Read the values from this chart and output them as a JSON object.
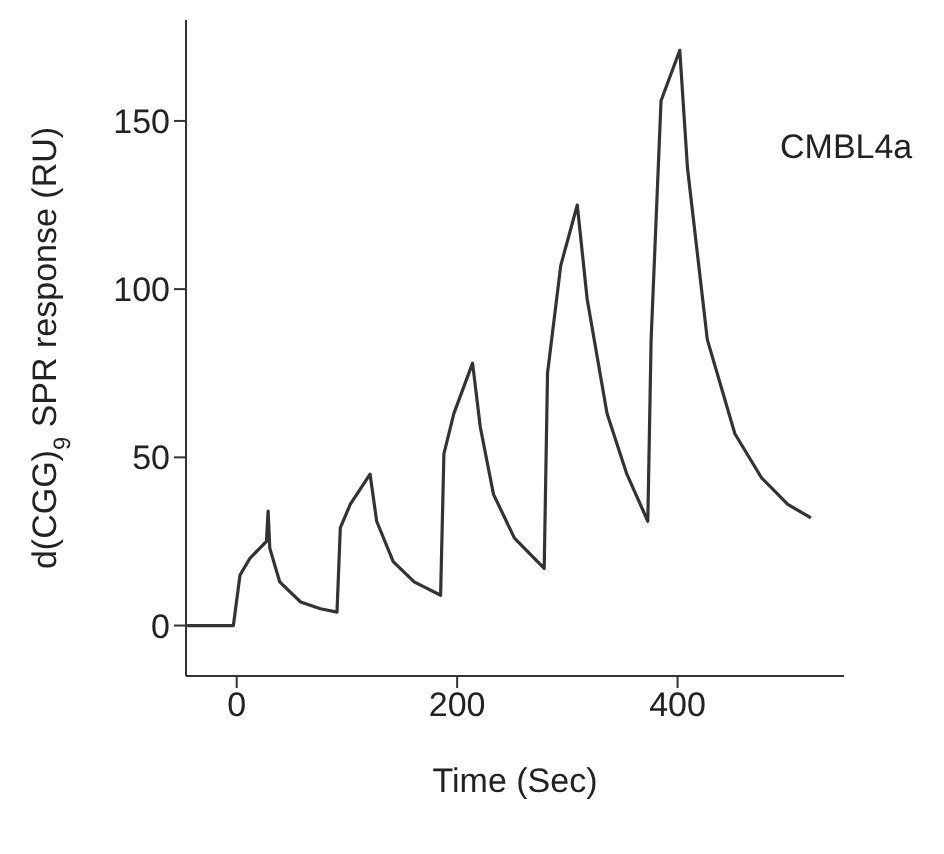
{
  "chart_data": {
    "type": "line",
    "xlabel": "Time (Sec)",
    "ylabel": "d(CGG)$_{9}$ SPR response (RU)",
    "annotations": [
      "CMBL4a"
    ],
    "x": [
      -45,
      -3,
      3,
      12,
      27,
      28.5,
      30,
      39,
      58,
      76,
      91,
      94,
      103,
      121,
      127,
      142,
      161,
      185,
      188,
      197,
      214,
      221,
      233,
      252,
      279,
      282,
      294,
      309,
      318,
      336,
      354,
      373,
      376,
      385,
      402,
      409,
      427,
      452,
      476,
      500,
      521
    ],
    "series": [
      {
        "color": "#333333",
        "values": [
          0,
          0,
          15,
          20,
          25,
          34,
          23,
          13,
          7,
          5,
          4,
          29,
          36,
          45,
          31,
          19,
          13,
          9,
          51,
          63,
          78,
          59,
          39,
          26,
          17,
          75,
          107,
          125,
          97,
          63,
          45,
          31,
          85,
          156,
          171,
          136,
          85,
          57,
          44,
          36,
          32
        ]
      }
    ],
    "xlim": [
      -46,
      551
    ],
    "xticks": [
      0,
      200,
      400
    ],
    "ylim": [
      -15,
      180
    ],
    "yticks": [
      0,
      50,
      100,
      150
    ],
    "grid": false,
    "legend": false,
    "marker": "none",
    "line_style": "solid"
  }
}
